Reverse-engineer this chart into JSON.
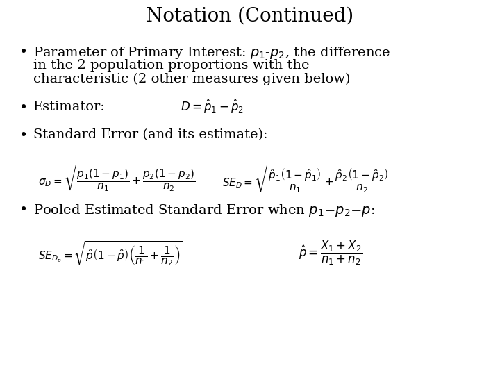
{
  "title": "Notation (Continued)",
  "title_fontsize": 20,
  "background_color": "#ffffff",
  "text_color": "#000000",
  "bullet1_line1": "Parameter of Primary Interest: $p_1$-$p_2$, the difference",
  "bullet1_line2": "in the 2 population proportions with the",
  "bullet1_line3": "characteristic (2 other measures given below)",
  "bullet2_text": "Estimator:",
  "estimator_formula": "$D = \\hat{p}_1 - \\hat{p}_2$",
  "bullet3_text": "Standard Error (and its estimate):",
  "sigma_formula": "$\\sigma_D = \\sqrt{\\dfrac{p_1(1-p_1)}{n_1} + \\dfrac{p_2(1-p_2)}{n_2}}$",
  "se_formula": "$SE_D = \\sqrt{\\dfrac{\\hat{p}_1\\left(1-\\hat{p}_1\\right)}{n_1} + \\dfrac{\\hat{p}_2\\left(1-\\hat{p}_2\\right)}{n_2}}$",
  "bullet4_text": "Pooled Estimated Standard Error when $p_1$=$p_2$=$p$:",
  "se_pool_formula": "$SE_{D_p} = \\sqrt{\\hat{p}\\left(1-\\hat{p}\\right)\\left(\\dfrac{1}{n_1}+\\dfrac{1}{n_2}\\right)}$",
  "p_hat_formula": "$\\hat{p} = \\dfrac{X_1 + X_2}{n_1 + n_2}$",
  "body_fontsize": 14,
  "formula_fontsize": 11
}
